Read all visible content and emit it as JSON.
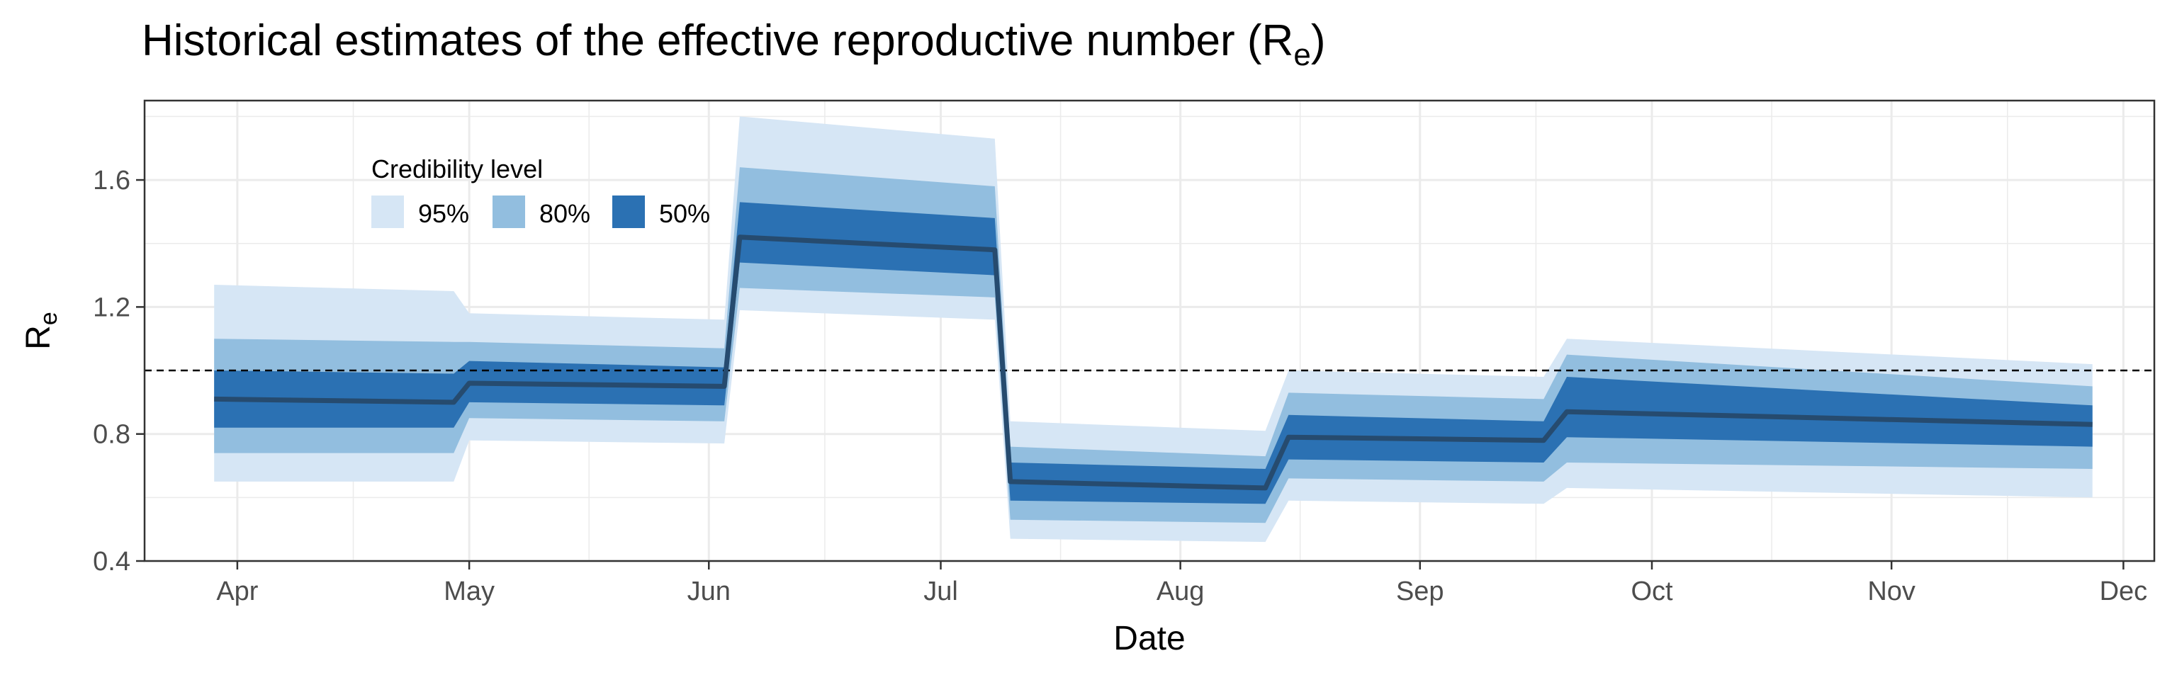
{
  "chart_data": {
    "type": "area",
    "title": "Historical estimates of the effective reproductive number (R",
    "title_subscript": "e",
    "title_suffix": ")",
    "xlabel": "Date",
    "ylabel": "R",
    "ylabel_subscript": "e",
    "ylim": [
      0.4,
      1.85
    ],
    "y_ticks": [
      0.4,
      0.8,
      1.2,
      1.6
    ],
    "y_tick_labels": [
      "0.4",
      "0.8",
      "1.2",
      "1.6"
    ],
    "xlim": [
      "2020-03-20",
      "2020-12-05"
    ],
    "x_ticks": [
      "2020-04-01",
      "2020-05-01",
      "2020-06-01",
      "2020-07-01",
      "2020-08-01",
      "2020-09-01",
      "2020-10-01",
      "2020-11-01",
      "2020-12-01"
    ],
    "x_tick_labels": [
      "Apr",
      "May",
      "Jun",
      "Jul",
      "Aug",
      "Sep",
      "Oct",
      "Nov",
      "Dec"
    ],
    "grid": true,
    "reference_line": {
      "y": 1.0,
      "style": "dashed"
    },
    "legend": {
      "title": "Credibility level",
      "placement": "top-left",
      "entries": [
        "95%",
        "80%",
        "50%"
      ]
    },
    "colors": {
      "band_95": "#d6e6f5",
      "band_80": "#92bedf",
      "band_50": "#2b71b3",
      "median_line": "#264b6f"
    },
    "series": [
      {
        "x": "2020-03-29",
        "median": 0.91,
        "lo95": 0.65,
        "hi95": 1.27,
        "lo80": 0.74,
        "hi80": 1.1,
        "lo50": 0.82,
        "hi50": 1.0
      },
      {
        "x": "2020-04-29",
        "median": 0.9,
        "lo95": 0.65,
        "hi95": 1.25,
        "lo80": 0.74,
        "hi80": 1.09,
        "lo50": 0.82,
        "hi50": 0.99
      },
      {
        "x": "2020-05-01",
        "median": 0.96,
        "lo95": 0.78,
        "hi95": 1.18,
        "lo80": 0.85,
        "hi80": 1.09,
        "lo50": 0.9,
        "hi50": 1.03
      },
      {
        "x": "2020-06-03",
        "median": 0.95,
        "lo95": 0.77,
        "hi95": 1.16,
        "lo80": 0.84,
        "hi80": 1.07,
        "lo50": 0.89,
        "hi50": 1.01
      },
      {
        "x": "2020-06-05",
        "median": 1.42,
        "lo95": 1.19,
        "hi95": 1.8,
        "lo80": 1.26,
        "hi80": 1.64,
        "lo50": 1.34,
        "hi50": 1.53
      },
      {
        "x": "2020-07-08",
        "median": 1.38,
        "lo95": 1.16,
        "hi95": 1.73,
        "lo80": 1.23,
        "hi80": 1.58,
        "lo50": 1.3,
        "hi50": 1.48
      },
      {
        "x": "2020-07-10",
        "median": 0.65,
        "lo95": 0.47,
        "hi95": 0.84,
        "lo80": 0.53,
        "hi80": 0.76,
        "lo50": 0.59,
        "hi50": 0.71
      },
      {
        "x": "2020-08-12",
        "median": 0.63,
        "lo95": 0.46,
        "hi95": 0.81,
        "lo80": 0.52,
        "hi80": 0.73,
        "lo50": 0.58,
        "hi50": 0.69
      },
      {
        "x": "2020-08-15",
        "median": 0.79,
        "lo95": 0.59,
        "hi95": 1.0,
        "lo80": 0.66,
        "hi80": 0.93,
        "lo50": 0.72,
        "hi50": 0.86
      },
      {
        "x": "2020-09-17",
        "median": 0.78,
        "lo95": 0.58,
        "hi95": 0.98,
        "lo80": 0.65,
        "hi80": 0.91,
        "lo50": 0.71,
        "hi50": 0.84
      },
      {
        "x": "2020-09-20",
        "median": 0.87,
        "lo95": 0.63,
        "hi95": 1.1,
        "lo80": 0.71,
        "hi80": 1.05,
        "lo50": 0.79,
        "hi50": 0.98
      },
      {
        "x": "2020-11-27",
        "median": 0.83,
        "lo95": 0.6,
        "hi95": 1.02,
        "lo80": 0.69,
        "hi80": 0.95,
        "lo50": 0.76,
        "hi50": 0.89
      }
    ]
  }
}
